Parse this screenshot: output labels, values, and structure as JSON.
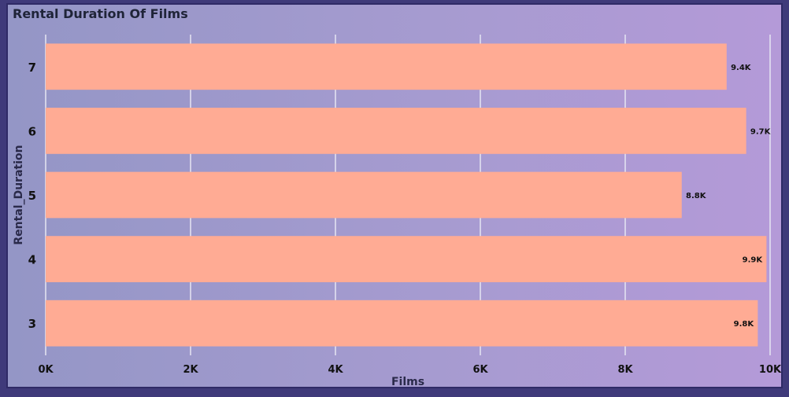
{
  "chart_data": {
    "type": "bar",
    "orientation": "horizontal",
    "title": "Rental Duration Of Films",
    "xlabel": "Films",
    "ylabel": "Rental_Duration",
    "categories": [
      "7",
      "6",
      "5",
      "4",
      "3"
    ],
    "values": [
      9400,
      9670,
      8780,
      9950,
      9830
    ],
    "data_labels": [
      "9.4K",
      "9.7K",
      "8.8K",
      "9.9K",
      "9.8K"
    ],
    "xlim": [
      0,
      10000
    ],
    "xticks": [
      0,
      2000,
      4000,
      6000,
      8000,
      10000
    ],
    "xtick_labels": [
      "0K",
      "2K",
      "4K",
      "6K",
      "8K",
      "10K"
    ],
    "grid": true,
    "bar_color": "#ffab94"
  }
}
